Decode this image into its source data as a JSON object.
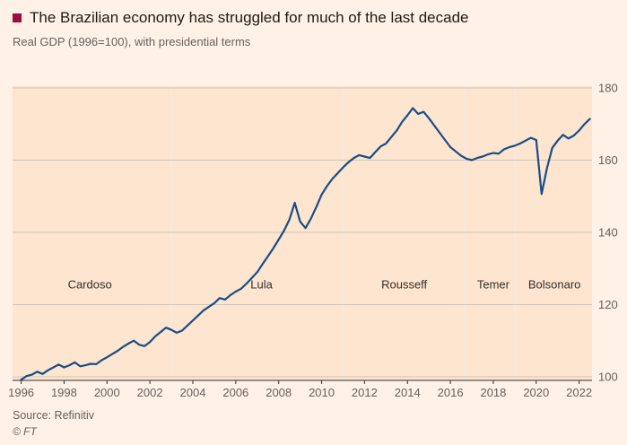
{
  "header": {
    "title": "The Brazilian economy has struggled for much of the last decade",
    "subtitle": "Real GDP (1996=100), with presidential terms"
  },
  "footer": {
    "source": "Source: Refinitiv",
    "copyright": "© FT"
  },
  "chart_data": {
    "type": "line",
    "title": "The Brazilian economy has struggled for much of the last decade",
    "subtitle": "Real GDP (1996=100), with presidential terms",
    "series_name": "Real GDP (1996=100)",
    "xlabel": "",
    "ylabel": "",
    "legend": "none",
    "grid": "horizontal",
    "ytick_side": "right",
    "xlim": [
      1995.6,
      2022.6
    ],
    "ylim": [
      99,
      180.5
    ],
    "yticks": [
      100,
      120,
      140,
      160,
      180
    ],
    "xticks": [
      1996,
      1998,
      2000,
      2002,
      2004,
      2006,
      2008,
      2010,
      2012,
      2014,
      2016,
      2018,
      2020,
      2022
    ],
    "president_label_value": 124.5,
    "presidents": [
      {
        "name": "Cardoso",
        "start": null,
        "label_year": 1999.2
      },
      {
        "name": "Lula",
        "start": 2003,
        "label_year": 2007.2
      },
      {
        "name": "Rousseff",
        "start": 2011,
        "label_year": 2013.85
      },
      {
        "name": "Temer",
        "start": 2016.67,
        "label_year": 2018.0
      },
      {
        "name": "Bolsonaro",
        "start": 2019,
        "label_year": 2020.85
      }
    ],
    "points": [
      [
        1996.0,
        99.2
      ],
      [
        1996.25,
        100.2
      ],
      [
        1996.5,
        100.6
      ],
      [
        1996.75,
        101.4
      ],
      [
        1997.0,
        100.8
      ],
      [
        1997.25,
        101.8
      ],
      [
        1997.5,
        102.6
      ],
      [
        1997.75,
        103.4
      ],
      [
        1998.0,
        102.6
      ],
      [
        1998.25,
        103.2
      ],
      [
        1998.5,
        104.0
      ],
      [
        1998.75,
        102.9
      ],
      [
        1999.0,
        103.2
      ],
      [
        1999.25,
        103.6
      ],
      [
        1999.5,
        103.5
      ],
      [
        1999.75,
        104.6
      ],
      [
        2000.0,
        105.4
      ],
      [
        2000.25,
        106.3
      ],
      [
        2000.5,
        107.2
      ],
      [
        2000.75,
        108.3
      ],
      [
        2001.0,
        109.2
      ],
      [
        2001.25,
        110.0
      ],
      [
        2001.5,
        108.9
      ],
      [
        2001.75,
        108.5
      ],
      [
        2002.0,
        109.6
      ],
      [
        2002.25,
        111.2
      ],
      [
        2002.5,
        112.4
      ],
      [
        2002.75,
        113.6
      ],
      [
        2003.0,
        113.0
      ],
      [
        2003.25,
        112.2
      ],
      [
        2003.5,
        112.8
      ],
      [
        2003.75,
        114.2
      ],
      [
        2004.0,
        115.6
      ],
      [
        2004.25,
        117.0
      ],
      [
        2004.5,
        118.4
      ],
      [
        2004.75,
        119.4
      ],
      [
        2005.0,
        120.4
      ],
      [
        2005.25,
        121.8
      ],
      [
        2005.5,
        121.4
      ],
      [
        2005.75,
        122.6
      ],
      [
        2006.0,
        123.6
      ],
      [
        2006.25,
        124.4
      ],
      [
        2006.5,
        125.8
      ],
      [
        2006.75,
        127.4
      ],
      [
        2007.0,
        129.0
      ],
      [
        2007.25,
        131.2
      ],
      [
        2007.5,
        133.4
      ],
      [
        2007.75,
        135.6
      ],
      [
        2008.0,
        138.0
      ],
      [
        2008.25,
        140.5
      ],
      [
        2008.5,
        143.5
      ],
      [
        2008.75,
        148.2
      ],
      [
        2009.0,
        143.0
      ],
      [
        2009.25,
        141.2
      ],
      [
        2009.5,
        143.8
      ],
      [
        2009.75,
        147.0
      ],
      [
        2010.0,
        150.4
      ],
      [
        2010.25,
        152.8
      ],
      [
        2010.5,
        154.8
      ],
      [
        2010.75,
        156.4
      ],
      [
        2011.0,
        158.0
      ],
      [
        2011.25,
        159.4
      ],
      [
        2011.5,
        160.6
      ],
      [
        2011.75,
        161.4
      ],
      [
        2012.0,
        161.0
      ],
      [
        2012.25,
        160.6
      ],
      [
        2012.5,
        162.2
      ],
      [
        2012.75,
        163.8
      ],
      [
        2013.0,
        164.6
      ],
      [
        2013.25,
        166.4
      ],
      [
        2013.5,
        168.2
      ],
      [
        2013.75,
        170.6
      ],
      [
        2014.0,
        172.4
      ],
      [
        2014.25,
        174.4
      ],
      [
        2014.5,
        172.8
      ],
      [
        2014.75,
        173.4
      ],
      [
        2015.0,
        171.6
      ],
      [
        2015.25,
        169.6
      ],
      [
        2015.5,
        167.6
      ],
      [
        2015.75,
        165.6
      ],
      [
        2016.0,
        163.6
      ],
      [
        2016.25,
        162.4
      ],
      [
        2016.5,
        161.2
      ],
      [
        2016.75,
        160.4
      ],
      [
        2017.0,
        160.0
      ],
      [
        2017.25,
        160.6
      ],
      [
        2017.5,
        161.0
      ],
      [
        2017.75,
        161.6
      ],
      [
        2018.0,
        162.0
      ],
      [
        2018.25,
        161.8
      ],
      [
        2018.5,
        163.0
      ],
      [
        2018.75,
        163.6
      ],
      [
        2019.0,
        164.0
      ],
      [
        2019.25,
        164.6
      ],
      [
        2019.5,
        165.4
      ],
      [
        2019.75,
        166.2
      ],
      [
        2020.0,
        165.6
      ],
      [
        2020.25,
        150.6
      ],
      [
        2020.5,
        157.8
      ],
      [
        2020.75,
        163.4
      ],
      [
        2021.0,
        165.4
      ],
      [
        2021.25,
        167.0
      ],
      [
        2021.5,
        166.0
      ],
      [
        2021.75,
        166.8
      ],
      [
        2022.0,
        168.2
      ],
      [
        2022.25,
        170.0
      ],
      [
        2022.5,
        171.4
      ]
    ],
    "colors": {
      "line": "#1a4d85",
      "page_bg": "#fff1e5",
      "plot_bg": "#fde5cf",
      "gridline": "#d1c5b9",
      "divider": "#f8e9da",
      "axis": "#33302e",
      "tick_label": "#66605c",
      "label": "#33302e",
      "title_marker": "#990f3d"
    }
  }
}
